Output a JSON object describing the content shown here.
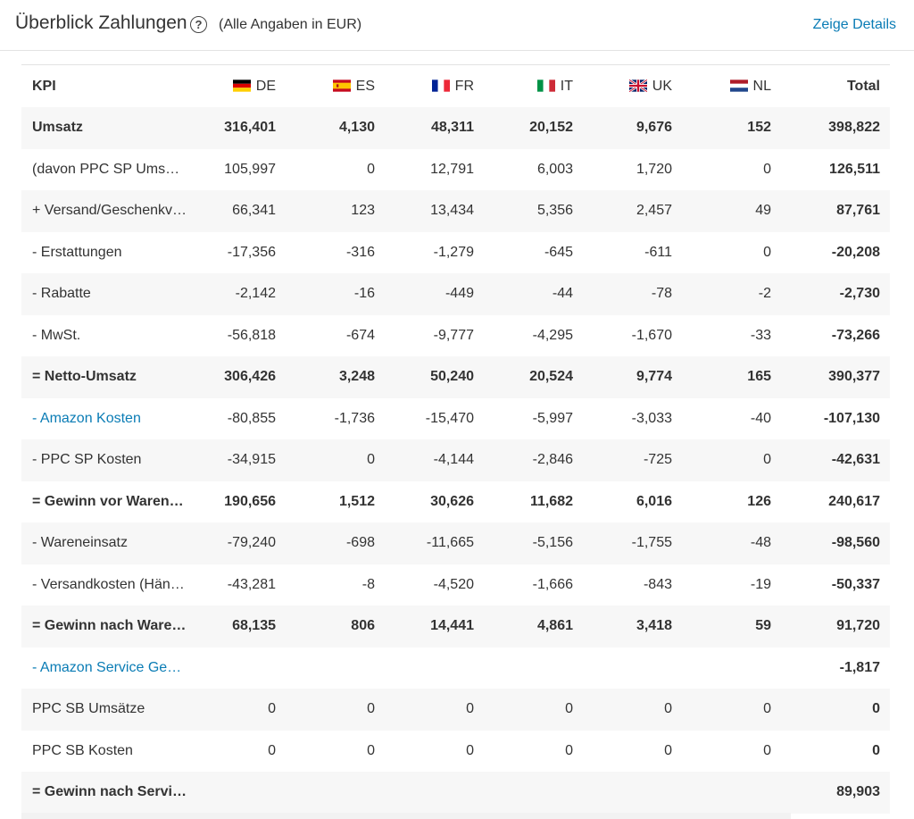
{
  "header": {
    "title": "Überblick Zahlungen",
    "help_icon": "question-circle-icon",
    "subtitle": "(Alle Angaben in EUR)",
    "details_link": "Zeige Details"
  },
  "table": {
    "headers": {
      "kpi": "KPI",
      "countries": [
        {
          "code": "DE",
          "flag": "germany-flag-icon"
        },
        {
          "code": "ES",
          "flag": "spain-flag-icon"
        },
        {
          "code": "FR",
          "flag": "france-flag-icon"
        },
        {
          "code": "IT",
          "flag": "italy-flag-icon"
        },
        {
          "code": "UK",
          "flag": "uk-flag-icon"
        },
        {
          "code": "NL",
          "flag": "netherlands-flag-icon"
        }
      ],
      "total": "Total"
    },
    "rows": [
      {
        "label": "Umsatz",
        "values": [
          "316,401",
          "4,130",
          "48,311",
          "20,152",
          "9,676",
          "152"
        ],
        "total": "398,822"
      },
      {
        "label": "(davon PPC SP Umsät…",
        "values": [
          "105,997",
          "0",
          "12,791",
          "6,003",
          "1,720",
          "0"
        ],
        "total": "126,511"
      },
      {
        "label": "+ Versand/Geschenkv…",
        "values": [
          "66,341",
          "123",
          "13,434",
          "5,356",
          "2,457",
          "49"
        ],
        "total": "87,761"
      },
      {
        "label": "- Erstattungen",
        "values": [
          "-17,356",
          "-316",
          "-1,279",
          "-645",
          "-611",
          "0"
        ],
        "total": "-20,208"
      },
      {
        "label": "- Rabatte",
        "values": [
          "-2,142",
          "-16",
          "-449",
          "-44",
          "-78",
          "-2"
        ],
        "total": "-2,730"
      },
      {
        "label": "- MwSt.",
        "values": [
          "-56,818",
          "-674",
          "-9,777",
          "-4,295",
          "-1,670",
          "-33"
        ],
        "total": "-73,266"
      },
      {
        "label": "= Netto-Umsatz",
        "values": [
          "306,426",
          "3,248",
          "50,240",
          "20,524",
          "9,774",
          "165"
        ],
        "total": "390,377"
      },
      {
        "label": "- Amazon Kosten",
        "values": [
          "-80,855",
          "-1,736",
          "-15,470",
          "-5,997",
          "-3,033",
          "-40"
        ],
        "total": "-107,130"
      },
      {
        "label": "- PPC SP Kosten",
        "values": [
          "-34,915",
          "0",
          "-4,144",
          "-2,846",
          "-725",
          "0"
        ],
        "total": "-42,631"
      },
      {
        "label": "= Gewinn vor Waren…",
        "values": [
          "190,656",
          "1,512",
          "30,626",
          "11,682",
          "6,016",
          "126"
        ],
        "total": "240,617"
      },
      {
        "label": "- Wareneinsatz",
        "values": [
          "-79,240",
          "-698",
          "-11,665",
          "-5,156",
          "-1,755",
          "-48"
        ],
        "total": "-98,560"
      },
      {
        "label": "- Versandkosten (Hän…",
        "values": [
          "-43,281",
          "-8",
          "-4,520",
          "-1,666",
          "-843",
          "-19"
        ],
        "total": "-50,337"
      },
      {
        "label": "= Gewinn nach Ware…",
        "values": [
          "68,135",
          "806",
          "14,441",
          "4,861",
          "3,418",
          "59"
        ],
        "total": "91,720"
      },
      {
        "label": "- Amazon Service Geb…",
        "values": [
          "",
          "",
          "",
          "",
          "",
          ""
        ],
        "total": "-1,817"
      },
      {
        "label": "PPC SB Umsätze",
        "values": [
          "0",
          "0",
          "0",
          "0",
          "0",
          "0"
        ],
        "total": "0"
      },
      {
        "label": "PPC SB Kosten",
        "values": [
          "0",
          "0",
          "0",
          "0",
          "0",
          "0"
        ],
        "total": "0"
      },
      {
        "label": "= Gewinn nach Servi…",
        "values": [
          "",
          "",
          "",
          "",
          "",
          ""
        ],
        "total": "89,903"
      }
    ]
  },
  "colors": {
    "link": "#0a7cb5",
    "row_alt": "#f7f7f7",
    "text": "#333333"
  }
}
